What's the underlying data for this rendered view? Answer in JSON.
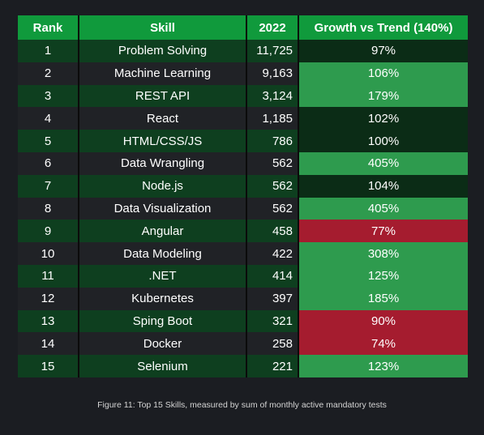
{
  "table": {
    "headers": [
      "Rank",
      "Skill",
      "2022",
      "Growth vs Trend (140%)"
    ],
    "rows": [
      {
        "rank": "1",
        "skill": "Problem Solving",
        "year2022": "11,725",
        "growth": "97%",
        "tone": "neutral"
      },
      {
        "rank": "2",
        "skill": "Machine Learning",
        "year2022": "9,163",
        "growth": "106%",
        "tone": "high"
      },
      {
        "rank": "3",
        "skill": "REST API",
        "year2022": "3,124",
        "growth": "179%",
        "tone": "high"
      },
      {
        "rank": "4",
        "skill": "React",
        "year2022": "1,185",
        "growth": "102%",
        "tone": "neutral"
      },
      {
        "rank": "5",
        "skill": "HTML/CSS/JS",
        "year2022": "786",
        "growth": "100%",
        "tone": "neutral"
      },
      {
        "rank": "6",
        "skill": "Data Wrangling",
        "year2022": "562",
        "growth": "405%",
        "tone": "high"
      },
      {
        "rank": "7",
        "skill": "Node.js",
        "year2022": "562",
        "growth": "104%",
        "tone": "neutral"
      },
      {
        "rank": "8",
        "skill": "Data Visualization",
        "year2022": "562",
        "growth": "405%",
        "tone": "high"
      },
      {
        "rank": "9",
        "skill": "Angular",
        "year2022": "458",
        "growth": "77%",
        "tone": "low"
      },
      {
        "rank": "10",
        "skill": "Data Modeling",
        "year2022": "422",
        "growth": "308%",
        "tone": "high"
      },
      {
        "rank": "11",
        "skill": ".NET",
        "year2022": "414",
        "growth": "125%",
        "tone": "high"
      },
      {
        "rank": "12",
        "skill": "Kubernetes",
        "year2022": "397",
        "growth": "185%",
        "tone": "high"
      },
      {
        "rank": "13",
        "skill": "Sping Boot",
        "year2022": "321",
        "growth": "90%",
        "tone": "low"
      },
      {
        "rank": "14",
        "skill": "Docker",
        "year2022": "258",
        "growth": "74%",
        "tone": "low"
      },
      {
        "rank": "15",
        "skill": "Selenium",
        "year2022": "221",
        "growth": "123%",
        "tone": "high"
      }
    ]
  },
  "caption": "Figure 11: Top 15 Skills, measured by sum of monthly active mandatory tests",
  "colors": {
    "header": "#109a3c",
    "row_green": "#0e3f1f",
    "row_dark": "#202226",
    "growth_neutral": "#0b2c16",
    "growth_high": "#2e9b4e",
    "growth_low": "#a51c2f"
  },
  "chart_data": {
    "type": "table",
    "columns": [
      "Rank",
      "Skill",
      "2022",
      "Growth vs Trend (140%)"
    ],
    "rows": [
      [
        1,
        "Problem Solving",
        11725,
        "97%"
      ],
      [
        2,
        "Machine Learning",
        9163,
        "106%"
      ],
      [
        3,
        "REST API",
        3124,
        "179%"
      ],
      [
        4,
        "React",
        1185,
        "102%"
      ],
      [
        5,
        "HTML/CSS/JS",
        786,
        "100%"
      ],
      [
        6,
        "Data Wrangling",
        562,
        "405%"
      ],
      [
        7,
        "Node.js",
        562,
        "104%"
      ],
      [
        8,
        "Data Visualization",
        562,
        "405%"
      ],
      [
        9,
        "Angular",
        458,
        "77%"
      ],
      [
        10,
        "Data Modeling",
        422,
        "308%"
      ],
      [
        11,
        ".NET",
        414,
        "125%"
      ],
      [
        12,
        "Kubernetes",
        397,
        "185%"
      ],
      [
        13,
        "Sping Boot",
        321,
        "90%"
      ],
      [
        14,
        "Docker",
        258,
        "74%"
      ],
      [
        15,
        "Selenium",
        221,
        "123%"
      ]
    ]
  }
}
